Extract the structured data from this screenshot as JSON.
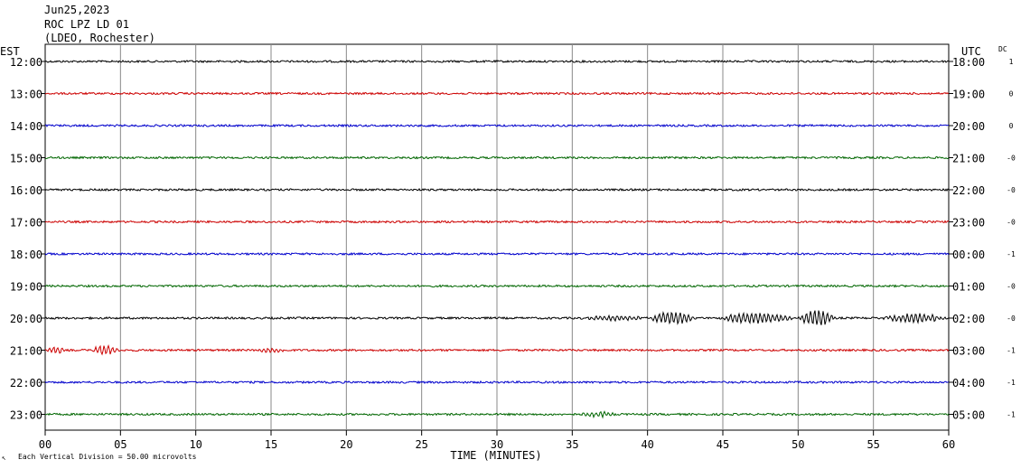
{
  "header": {
    "date": "Jun25,2023",
    "station": "ROC LPZ LD 01",
    "network": "(LDEO, Rochester)"
  },
  "left_tz": "EST",
  "right_tz": "UTC",
  "dc_label": "DC",
  "footer": {
    "scale": "Each Vertical Division =   50.00 microvolts",
    "xlabel": "TIME (MINUTES)"
  },
  "chart_data": {
    "type": "line",
    "title": "",
    "xlabel": "TIME (MINUTES)",
    "xlim": [
      0,
      60
    ],
    "xticks": [
      "00",
      "05",
      "10",
      "15",
      "20",
      "25",
      "30",
      "35",
      "40",
      "45",
      "50",
      "55",
      "60"
    ],
    "grid": true,
    "colors": [
      "#000000",
      "#cc0000",
      "#0000cc",
      "#006600"
    ],
    "rows": [
      {
        "est": "12:00",
        "utc": "18:00",
        "dc": "1"
      },
      {
        "est": "13:00",
        "utc": "19:00",
        "dc": "0"
      },
      {
        "est": "14:00",
        "utc": "20:00",
        "dc": "0"
      },
      {
        "est": "15:00",
        "utc": "21:00",
        "dc": "-0"
      },
      {
        "est": "16:00",
        "utc": "22:00",
        "dc": "-0"
      },
      {
        "est": "17:00",
        "utc": "23:00",
        "dc": "-0"
      },
      {
        "est": "18:00",
        "utc": "00:00",
        "dc": "-1"
      },
      {
        "est": "19:00",
        "utc": "01:00",
        "dc": "-0"
      },
      {
        "est": "20:00",
        "utc": "02:00",
        "dc": "-0"
      },
      {
        "est": "21:00",
        "utc": "03:00",
        "dc": "-1"
      },
      {
        "est": "22:00",
        "utc": "04:00",
        "dc": "-1"
      },
      {
        "est": "23:00",
        "utc": "05:00",
        "dc": "-1"
      }
    ],
    "events": [
      {
        "row": 8,
        "start": 35.5,
        "end": 40,
        "amp": 2.5
      },
      {
        "row": 8,
        "start": 40,
        "end": 43.5,
        "amp": 7
      },
      {
        "row": 8,
        "start": 44.5,
        "end": 50,
        "amp": 6
      },
      {
        "row": 8,
        "start": 50,
        "end": 52.5,
        "amp": 10
      },
      {
        "row": 8,
        "start": 55.5,
        "end": 60,
        "amp": 5
      },
      {
        "row": 9,
        "start": 0,
        "end": 1.5,
        "amp": 4
      },
      {
        "row": 9,
        "start": 3,
        "end": 5,
        "amp": 5
      },
      {
        "row": 9,
        "start": 14,
        "end": 16,
        "amp": 2.5
      },
      {
        "row": 11,
        "start": 35.5,
        "end": 38,
        "amp": 3
      }
    ]
  }
}
